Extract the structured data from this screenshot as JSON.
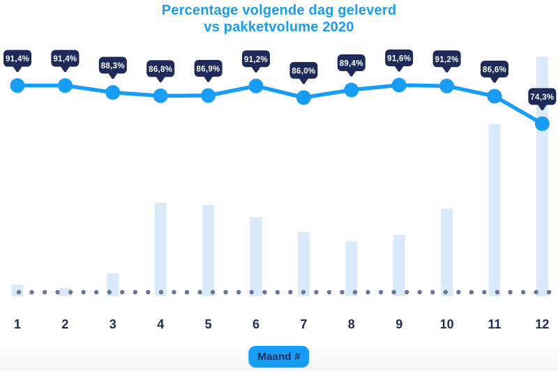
{
  "title": {
    "line1": "Percentage volgende dag geleverd",
    "line2": "vs pakketvolume 2020"
  },
  "x_axis": {
    "labels": [
      "1",
      "2",
      "3",
      "4",
      "5",
      "6",
      "7",
      "8",
      "9",
      "10",
      "11",
      "12"
    ],
    "title_badge": "Maand #"
  },
  "chart_data": {
    "type": "line",
    "title": "Percentage volgende dag geleverd vs pakketvolume 2020",
    "xlabel": "Maand #",
    "ylabel": "",
    "categories": [
      1,
      2,
      3,
      4,
      5,
      6,
      7,
      8,
      9,
      10,
      11,
      12
    ],
    "grid": false,
    "legend": "none",
    "y_axis": "none (percentages shown as point labels; volume bars have no labeled axis)",
    "series": [
      {
        "name": "percentage-volgende-dag-geleverd",
        "type": "line",
        "unit": "%",
        "values": [
          91.4,
          91.4,
          88.3,
          86.8,
          86.9,
          91.2,
          86.0,
          89.4,
          91.6,
          91.2,
          86.6,
          74.3
        ],
        "point_labels": [
          "91,4%",
          "91,4%",
          "88,3%",
          "86,8%",
          "86,9%",
          "91,2%",
          "86,0%",
          "89,4%",
          "91,6%",
          "91,2%",
          "86,6%",
          "74,3%"
        ]
      },
      {
        "name": "pakketvolume-2020",
        "type": "bar",
        "unit": "relative volume (max month = 100, axis not shown)",
        "values": [
          4.9,
          3.5,
          9.6,
          39.0,
          38.1,
          33.1,
          26.7,
          23.0,
          25.6,
          36.6,
          71.8,
          100
        ]
      }
    ]
  },
  "colors": {
    "accent_blue": "#189df6",
    "badge_navy": "#1e2b5a",
    "badge_text": "#ffffff",
    "bar_light_blue": "#daeafa",
    "dot_slate": "#5b6b8e",
    "label_navy": "#1e2b5a",
    "background": "#ffffff"
  }
}
